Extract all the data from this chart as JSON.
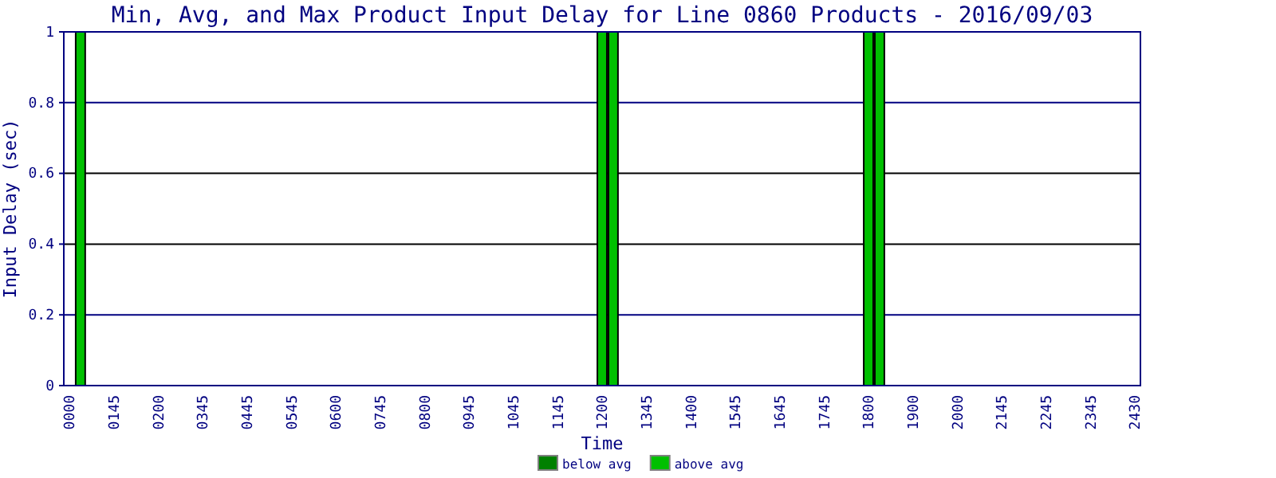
{
  "chart_data": {
    "type": "bar",
    "title": "Min, Avg, and Max Product Input Delay for Line 0860 Products - 2016/09/03",
    "xlabel": "Time",
    "ylabel": "Input Delay (sec)",
    "categories": [
      "0000",
      null,
      null,
      null,
      "0145",
      null,
      null,
      null,
      "0200",
      null,
      null,
      null,
      "0345",
      null,
      null,
      null,
      "0445",
      null,
      null,
      null,
      "0545",
      null,
      null,
      null,
      "0600",
      null,
      null,
      null,
      "0745",
      null,
      null,
      null,
      "0800",
      null,
      null,
      null,
      "0945",
      null,
      null,
      null,
      "1045",
      null,
      null,
      null,
      "1145",
      null,
      null,
      null,
      "1200",
      null,
      null,
      null,
      "1345",
      null,
      null,
      null,
      "1400",
      null,
      null,
      null,
      "1545",
      null,
      null,
      null,
      "1645",
      null,
      null,
      null,
      "1745",
      null,
      null,
      null,
      "1800",
      null,
      null,
      null,
      "1900",
      null,
      null,
      null,
      "2000",
      null,
      null,
      null,
      "2145",
      null,
      null,
      null,
      "2245",
      null,
      null,
      null,
      "2345",
      null,
      null,
      null,
      "2430"
    ],
    "series": [
      {
        "name": "below avg",
        "color": "#008000",
        "values": [
          null,
          null,
          null,
          null,
          null,
          null,
          null,
          null,
          null,
          null,
          null,
          null,
          null,
          null,
          null,
          null,
          null,
          null,
          null,
          null,
          null,
          null,
          null,
          null,
          null,
          null,
          null,
          null,
          null,
          null,
          null,
          null,
          null,
          null,
          null,
          null,
          null,
          null,
          null,
          null,
          null,
          null,
          null,
          null,
          null,
          null,
          null,
          null,
          null,
          null,
          null,
          null,
          null,
          null,
          null,
          null,
          null,
          null,
          null,
          null,
          null,
          null,
          null,
          null,
          null,
          null,
          null,
          null,
          null,
          null,
          null,
          null,
          null,
          null,
          null,
          null,
          null,
          null,
          null,
          null,
          null,
          null,
          null,
          null,
          null,
          null,
          null,
          null,
          null,
          null,
          null,
          null,
          null,
          null,
          null,
          null,
          null
        ]
      },
      {
        "name": "above avg",
        "color": "#00c000",
        "values": [
          null,
          1,
          null,
          null,
          null,
          null,
          null,
          null,
          null,
          null,
          null,
          null,
          null,
          null,
          null,
          null,
          null,
          null,
          null,
          null,
          null,
          null,
          null,
          null,
          null,
          null,
          null,
          null,
          null,
          null,
          null,
          null,
          null,
          null,
          null,
          null,
          null,
          null,
          null,
          null,
          null,
          null,
          null,
          null,
          null,
          null,
          null,
          null,
          1,
          1,
          null,
          null,
          null,
          null,
          null,
          null,
          null,
          null,
          null,
          null,
          null,
          null,
          null,
          null,
          null,
          null,
          null,
          null,
          null,
          null,
          null,
          null,
          1,
          1,
          null,
          null,
          null,
          null,
          null,
          null,
          null,
          null,
          null,
          null,
          null,
          null,
          null,
          null,
          null,
          null,
          null,
          null,
          null,
          null,
          null,
          null,
          null
        ]
      }
    ],
    "ylim": [
      0,
      1
    ],
    "yticks": [
      0,
      0.2,
      0.4,
      0.6,
      0.8,
      1
    ],
    "grid": "y",
    "legend": "bottom"
  }
}
